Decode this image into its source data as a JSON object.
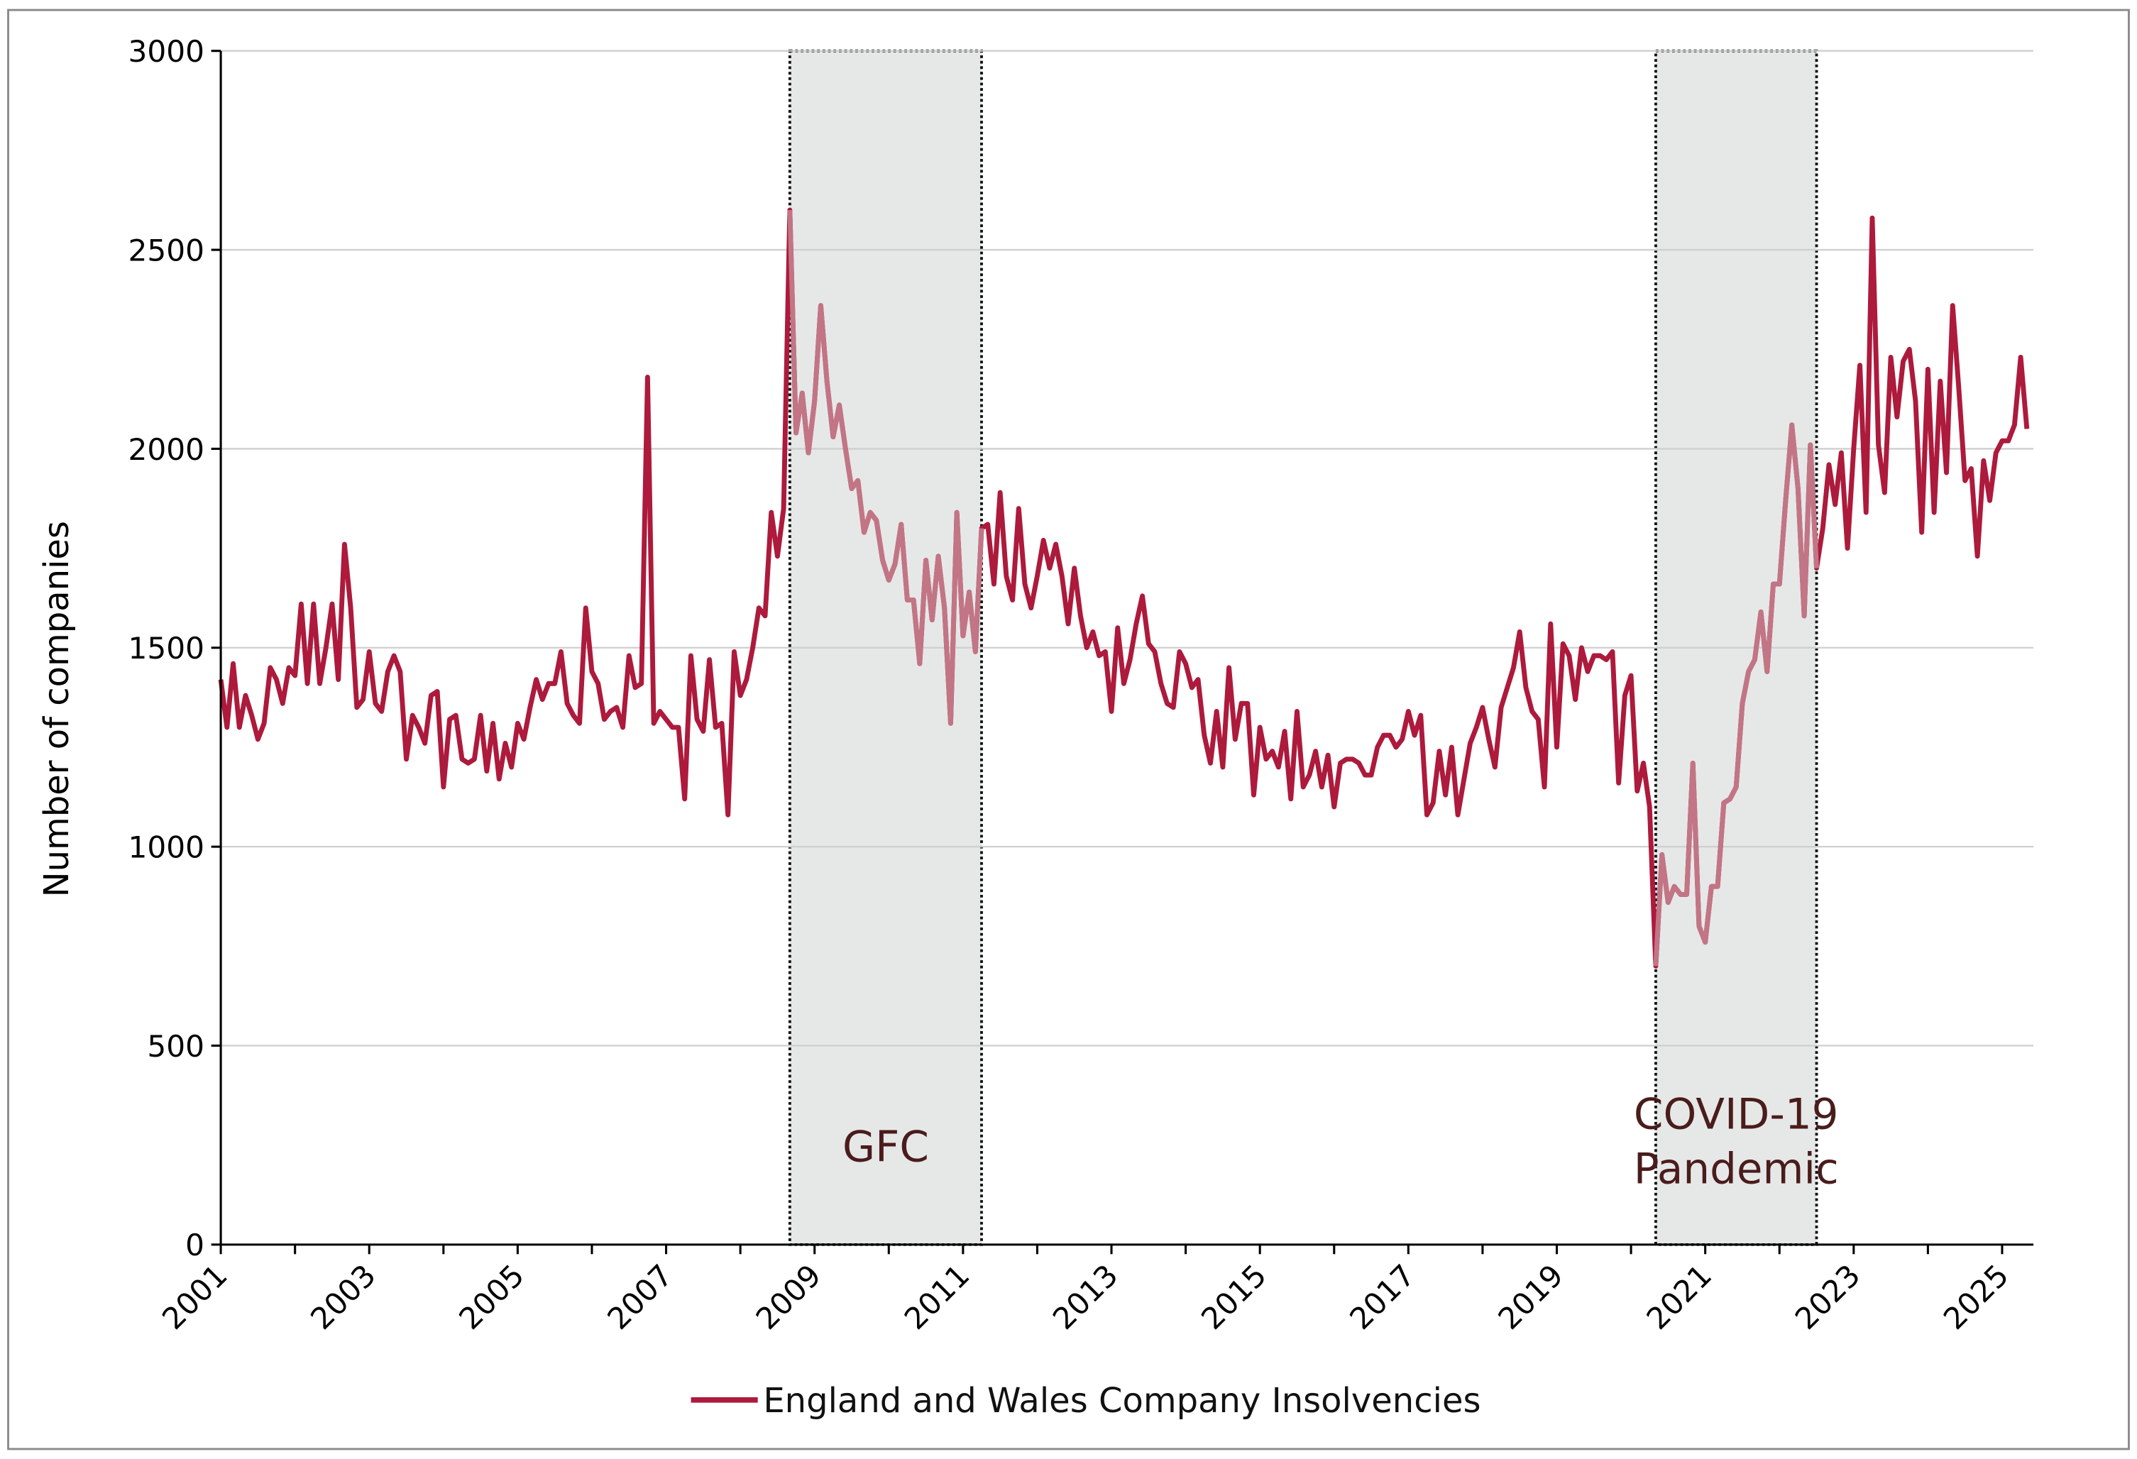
{
  "chart_data": {
    "type": "line",
    "title": "",
    "xlabel": "",
    "ylabel": "Number of companies",
    "ylim": [
      0,
      3000
    ],
    "yticks": [
      "0",
      "500",
      "1000",
      "1500",
      "2000",
      "2500",
      "3000"
    ],
    "xlim": [
      "2001-01",
      "2025-05"
    ],
    "xticks": [
      "2001",
      "2003",
      "2005",
      "2007",
      "2009",
      "2011",
      "2013",
      "2015",
      "2017",
      "2019",
      "2021",
      "2023",
      "2025"
    ],
    "grid": "horizontal",
    "legend_position": "bottom",
    "frequency": "monthly",
    "series": [
      {
        "name": "England and Wales Company Insolvencies",
        "color": "#ad1a3c",
        "shaded_color": "#c27585",
        "values_by_year": {
          "2001": [
            1420,
            1300,
            1460,
            1300,
            1380,
            1330,
            1270,
            1310,
            1450,
            1420,
            1360,
            1450
          ],
          "2002": [
            1430,
            1610,
            1410,
            1610,
            1410,
            1500,
            1610,
            1420,
            1760,
            1600,
            1350,
            1370
          ],
          "2003": [
            1490,
            1360,
            1340,
            1440,
            1480,
            1440,
            1220,
            1330,
            1300,
            1260,
            1380,
            1390
          ],
          "2004": [
            1150,
            1320,
            1330,
            1220,
            1210,
            1220,
            1330,
            1190,
            1310,
            1170,
            1260,
            1200
          ],
          "2005": [
            1310,
            1270,
            1350,
            1420,
            1370,
            1410,
            1410,
            1490,
            1360,
            1330,
            1310,
            1600
          ],
          "2006": [
            1440,
            1410,
            1320,
            1340,
            1350,
            1300,
            1480,
            1400,
            1410,
            2180,
            1310,
            1340
          ],
          "2007": [
            1320,
            1300,
            1300,
            1120,
            1480,
            1320,
            1290,
            1470,
            1300,
            1310,
            1080,
            1490
          ],
          "2008": [
            1380,
            1420,
            1500,
            1600,
            1580,
            1840,
            1730,
            1850,
            2600,
            2040,
            2140,
            1990
          ],
          "2009": [
            2120,
            2360,
            2170,
            2030,
            2110,
            2000,
            1900,
            1920,
            1790,
            1840,
            1820,
            1720
          ],
          "2010": [
            1670,
            1710,
            1810,
            1620,
            1620,
            1460,
            1720,
            1570,
            1730,
            1600,
            1310,
            1840
          ],
          "2011": [
            1530,
            1640,
            1490,
            1800,
            1810,
            1660,
            1890,
            1680,
            1620,
            1850,
            1660,
            1600
          ],
          "2012": [
            1680,
            1770,
            1700,
            1760,
            1680,
            1560,
            1700,
            1580,
            1500,
            1540,
            1480,
            1490
          ],
          "2013": [
            1340,
            1550,
            1410,
            1470,
            1560,
            1630,
            1510,
            1490,
            1410,
            1360,
            1350,
            1490
          ],
          "2014": [
            1460,
            1400,
            1420,
            1280,
            1210,
            1340,
            1200,
            1450,
            1270,
            1360,
            1360,
            1130
          ],
          "2015": [
            1300,
            1220,
            1240,
            1200,
            1290,
            1120,
            1340,
            1150,
            1180,
            1240,
            1150,
            1230
          ],
          "2016": [
            1100,
            1210,
            1220,
            1220,
            1210,
            1180,
            1180,
            1250,
            1280,
            1280,
            1250,
            1270
          ],
          "2017": [
            1340,
            1280,
            1330,
            1080,
            1110,
            1240,
            1130,
            1250,
            1080,
            1170,
            1260,
            1300
          ],
          "2018": [
            1350,
            1270,
            1200,
            1350,
            1400,
            1450,
            1540,
            1400,
            1340,
            1320,
            1150,
            1560
          ],
          "2019": [
            1250,
            1510,
            1480,
            1370,
            1500,
            1440,
            1480,
            1480,
            1470,
            1490,
            1160,
            1380
          ],
          "2020": [
            1430,
            1140,
            1210,
            1100,
            700,
            980,
            860,
            900,
            880,
            880,
            1210,
            800
          ],
          "2021": [
            760,
            900,
            900,
            1110,
            1120,
            1150,
            1360,
            1440,
            1470,
            1590,
            1440,
            1660
          ],
          "2022": [
            1660,
            1870,
            2060,
            1900,
            1580,
            2010,
            1700,
            1800,
            1960,
            1860,
            1990,
            1750
          ],
          "2023": [
            2000,
            2210,
            1840,
            2580,
            2010,
            1890,
            2230,
            2080,
            2220,
            2250,
            2120,
            1790
          ],
          "2024": [
            2200,
            1840,
            2170,
            1940,
            2360,
            2150,
            1920,
            1950,
            1730,
            1970,
            1870,
            1990
          ],
          "2025": [
            2020,
            2020,
            2060,
            2230,
            2050
          ]
        }
      }
    ],
    "annotations": [
      {
        "label": "GFC",
        "start": "2008-09",
        "end": "2011-04",
        "fill": "#e6e8e7"
      },
      {
        "label": "COVID-19",
        "label2": "Pandemic",
        "start": "2020-05",
        "end": "2022-07",
        "fill": "#e6e8e7"
      }
    ]
  }
}
